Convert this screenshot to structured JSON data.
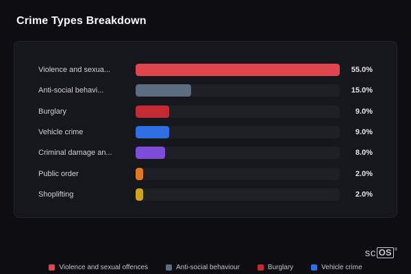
{
  "chart_data": {
    "type": "bar",
    "orientation": "horizontal",
    "title": "Crime Types Breakdown",
    "categories": [
      "Violence and sexua...",
      "Anti-social behavi...",
      "Burglary",
      "Vehicle crime",
      "Criminal damage an...",
      "Public order",
      "Shoplifting"
    ],
    "values": [
      55.0,
      15.0,
      9.0,
      9.0,
      8.0,
      2.0,
      2.0
    ],
    "value_labels": [
      "55.0%",
      "15.0%",
      "9.0%",
      "9.0%",
      "8.0%",
      "2.0%",
      "2.0%"
    ],
    "unit": "%",
    "xlim": [
      0,
      55
    ],
    "colors": [
      "#e0444d",
      "#5d6d80",
      "#c42a33",
      "#2f6fe4",
      "#7d4fd8",
      "#e2791f",
      "#cfa518"
    ],
    "bar_track_color": "#1f1f26",
    "grid": false,
    "legend_position": "bottom",
    "legend": [
      {
        "label": "Violence and sexual offences",
        "color": "#e0444d"
      },
      {
        "label": "Anti-social behaviour",
        "color": "#5d6d80"
      },
      {
        "label": "Burglary",
        "color": "#c42a33"
      },
      {
        "label": "Vehicle crime",
        "color": "#2f6fe4"
      }
    ]
  },
  "branding": {
    "logo_prefix": "sc",
    "logo_box": "OS",
    "registered": "®"
  }
}
